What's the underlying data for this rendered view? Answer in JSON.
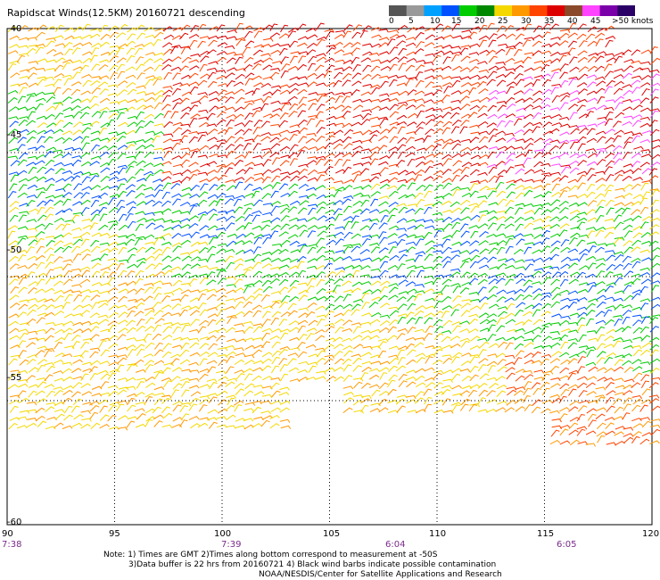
{
  "title": "Rapidscat Winds(12.5KM) 20160721 descending",
  "colorbar": {
    "labels": [
      "0",
      "5",
      "10",
      "15",
      "20",
      "25",
      "30",
      "35",
      "40",
      "45",
      ">50 knots"
    ],
    "colors": [
      "#555555",
      "#999999",
      "#00a0ff",
      "#0050ff",
      "#00cc00",
      "#008800",
      "#f5d800",
      "#ff9900",
      "#ff4400",
      "#dd0000",
      "#8a4a2a",
      "#ff44ff",
      "#7a00aa",
      "#2a0066"
    ]
  },
  "axes": {
    "lon_labels": [
      "90",
      "95",
      "100",
      "105",
      "110",
      "115",
      "120"
    ],
    "lat_labels": [
      "-40",
      "-45",
      "-50",
      "-55",
      "-60"
    ],
    "lon_range": [
      90,
      120
    ],
    "lat_range": [
      -40,
      -60
    ]
  },
  "times": [
    "7:38",
    "7:39",
    "6:04",
    "6:05"
  ],
  "notes": {
    "line1": "Note: 1) Times are GMT 2)Times along bottom correspond to measurement at -50S",
    "line2": "3)Data buffer is 22 hrs from 20160721 4) Black wind barbs indicate possible contamination",
    "line3": "NOAA/NESDIS/Center for Satellite Applications and Research"
  }
}
